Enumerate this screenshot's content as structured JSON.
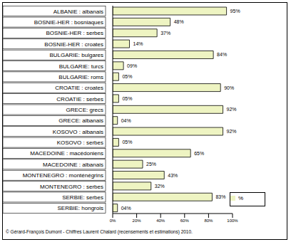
{
  "chart_data": {
    "type": "bar",
    "orientation": "horizontal",
    "categories": [
      "ALBANIE : albanais",
      "BOSNIE-HER : bosniaques",
      "BOSNIE-HER : serbes",
      "BOSNIE-HER : croates",
      "BULGARIE: bulgares",
      "BULGARIE: turcs",
      "BULGARIE: roms",
      "CROATIE : croates",
      "CROATIE : serbes",
      "GRECE: grecs",
      "GRECE: albanais",
      "KOSOVO : albanais",
      "KOSOVO : serbes",
      "MACEDOINE : macédoniens",
      "MACEDOINE : albanais",
      "MONTENEGRO : monténégrins",
      "MONTENEGRO : serbes",
      "SERBIE: serbes",
      "SERBIE: hongrois"
    ],
    "series": [
      {
        "name": "%",
        "color": "#eef4c2",
        "values": [
          95,
          48,
          37,
          14,
          84,
          9,
          5,
          90,
          5,
          92,
          4,
          92,
          5,
          65,
          25,
          43,
          32,
          83,
          4
        ],
        "value_labels": [
          "95%",
          "48%",
          "37%",
          "14%",
          "84%",
          "09%",
          "05%",
          "90%",
          "05%",
          "92%",
          "04%",
          "92%",
          "05%",
          "65%",
          "25%",
          "43%",
          "32%",
          "83%",
          "04%"
        ]
      }
    ],
    "xlim": [
      0,
      100
    ],
    "xticks": [
      {
        "value": 0,
        "label": "0%"
      },
      {
        "value": 20,
        "label": "20%"
      },
      {
        "value": 40,
        "label": "40%"
      },
      {
        "value": 60,
        "label": "60%"
      },
      {
        "value": 80,
        "label": "80%"
      },
      {
        "value": 100,
        "label": "100%"
      }
    ],
    "grid": false,
    "legend": "right",
    "data_labels": true,
    "annotations": [
      "© Gérard-François Dumont - Chiffres Laurent Chalard (recensements et estimations)  2010."
    ]
  }
}
